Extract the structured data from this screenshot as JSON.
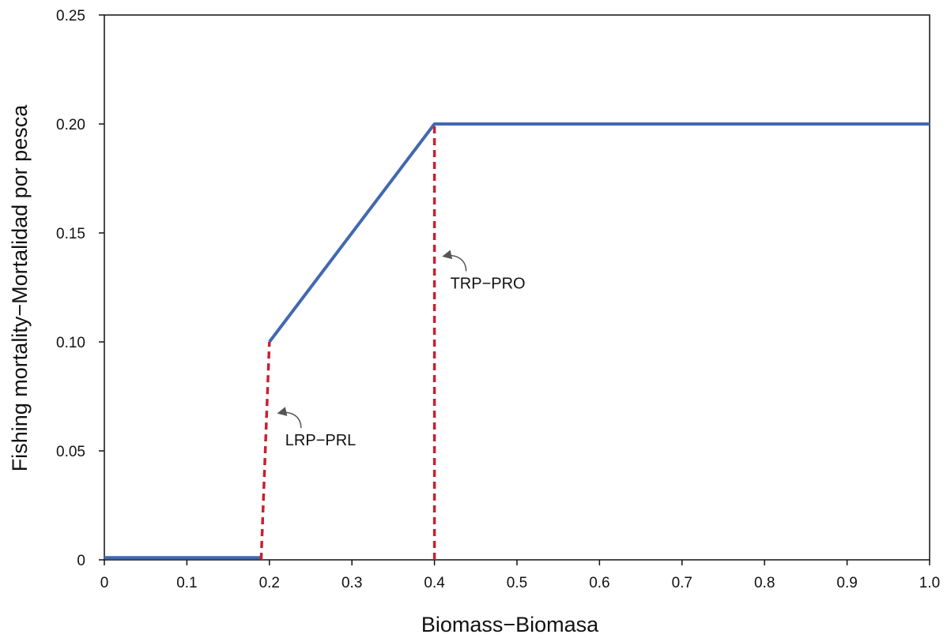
{
  "chart_data": {
    "type": "line",
    "title": "",
    "xlabel": "Biomass−Biomasa",
    "ylabel": "Fishing mortality−Mortalidad por pesca",
    "xlim": [
      0,
      1.0
    ],
    "ylim": [
      0,
      0.25
    ],
    "x_ticks": [
      0,
      0.1,
      0.2,
      0.3,
      0.4,
      0.5,
      0.6,
      0.7,
      0.8,
      0.9,
      1.0
    ],
    "x_tick_labels": [
      "0",
      "0.1",
      "0.2",
      "0.3",
      "0.4",
      "0.5",
      "0.6",
      "0.7",
      "0.8",
      "0.9",
      "1.0"
    ],
    "y_ticks": [
      0,
      0.05,
      0.1,
      0.15,
      0.2,
      0.25
    ],
    "y_tick_labels": [
      "0",
      "0.05",
      "0.10",
      "0.15",
      "0.20",
      "0.25"
    ],
    "grid": false,
    "series": [
      {
        "style": "solid",
        "color": "#4169b0",
        "x": [
          0,
          0.19,
          0.19,
          0.2,
          0.4,
          1.0
        ],
        "y": [
          0.001,
          0.001,
          0.001,
          0.1,
          0.2,
          0.2
        ],
        "segments": [
          {
            "x": [
              0,
              0.19
            ],
            "y": [
              0.001,
              0.001
            ]
          },
          {
            "x": [
              0.2,
              0.4,
              1.0
            ],
            "y": [
              0.1,
              0.2,
              0.2
            ]
          }
        ]
      },
      {
        "style": "dashed",
        "color": "#c8202f",
        "segments": [
          {
            "x": [
              0.19,
              0.2
            ],
            "y": [
              0,
              0.1
            ]
          },
          {
            "x": [
              0.4,
              0.4
            ],
            "y": [
              0,
              0.2
            ]
          }
        ]
      }
    ],
    "annotations": [
      {
        "text": "LRP−PRL",
        "x": 0.2,
        "y": 0.067,
        "arrow": true
      },
      {
        "text": "TRP−PRO",
        "x": 0.4,
        "y": 0.139,
        "arrow": true
      }
    ]
  },
  "colors": {
    "line": "#4169b0",
    "reference": "#c8202f",
    "arrow": "#555555",
    "axis": "#111111"
  }
}
